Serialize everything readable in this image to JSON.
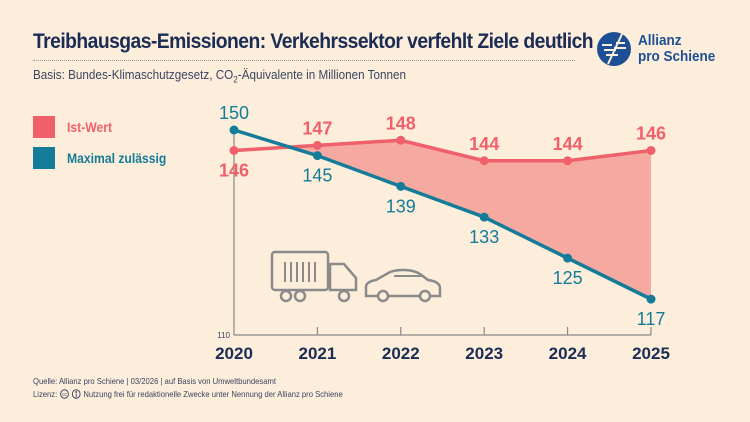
{
  "header": {
    "title": "Treibhausgas-Emissionen: Verkehrssektor verfehlt Ziele deutlich",
    "subtitle_pre": "Basis: Bundes-Klimaschutzgesetz, CO",
    "subtitle_sub": "2",
    "subtitle_post": "-Äquivalente in Millionen Tonnen"
  },
  "logo": {
    "line1": "Allianz",
    "line2": "pro Schiene"
  },
  "colors": {
    "ist": "#f0606a",
    "fill": "#f5a9a1",
    "max": "#147b98",
    "navy": "#1b2c55",
    "background": "#fdeedc"
  },
  "icons": [
    "truck-icon",
    "car-icon",
    "creative-commons-icon",
    "attribution-icon"
  ],
  "chart_data": {
    "type": "line",
    "categories": [
      "2020",
      "2021",
      "2022",
      "2023",
      "2024",
      "2025"
    ],
    "ylim": [
      110,
      150
    ],
    "ytick_labels": [
      "110"
    ],
    "series": [
      {
        "name": "Ist-Wert",
        "values": [
          146,
          147,
          148,
          144,
          144,
          146
        ]
      },
      {
        "name": "Maximal zulässig",
        "values": [
          150,
          145,
          139,
          133,
          125,
          117
        ]
      }
    ],
    "shaded_area": "between series where Ist-Wert exceeds Maximal zulässig",
    "legend": "top-left",
    "grid": false
  },
  "footer": {
    "source": "Quelle: Allianz pro Schiene | 03/2026 | auf Basis von Umweltbundesamt",
    "license_label": "Lizenz:",
    "license_text": "Nutzung frei für redaktionelle Zwecke unter Nennung der Allianz pro Schiene"
  }
}
